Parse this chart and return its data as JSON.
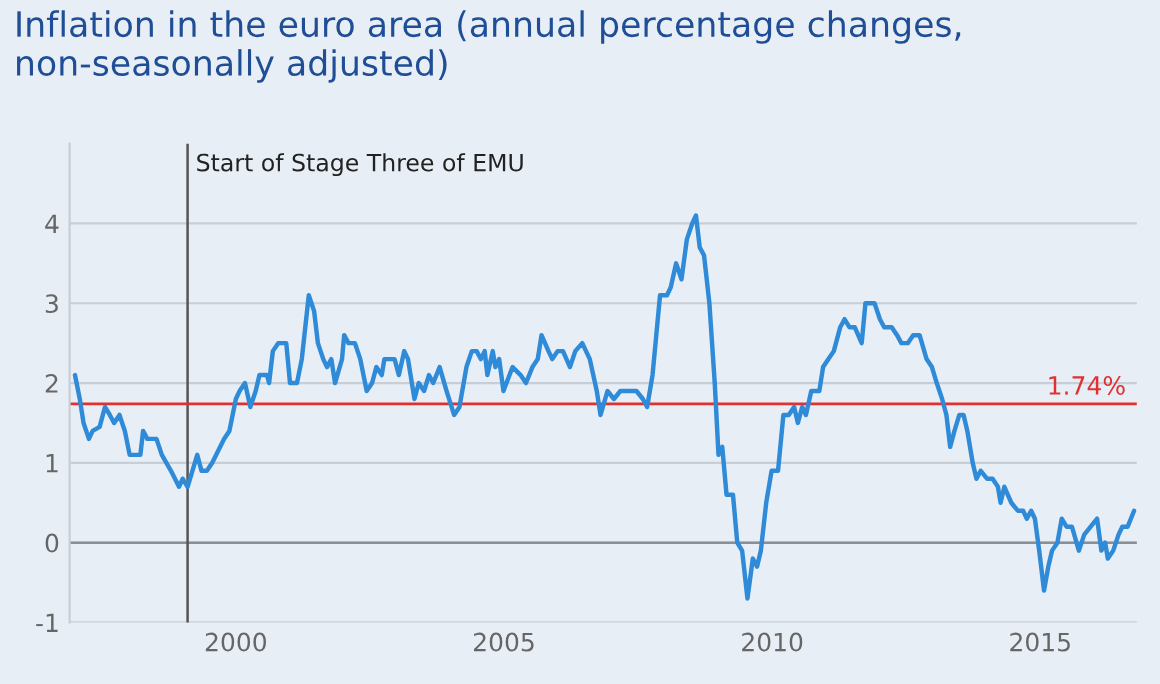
{
  "chart_data": {
    "type": "line",
    "title": "Inflation in the euro area (annual percentage changes, non-seasonally adjusted)",
    "xlim": [
      1996.9,
      2016.8
    ],
    "xticks": [
      2000,
      2005,
      2010,
      2015
    ],
    "ylim": [
      -1,
      5
    ],
    "yticks": [
      -1,
      0,
      1,
      2,
      3,
      4
    ],
    "grid": "y",
    "legend": false,
    "ref_lines": [
      {
        "axis": "x",
        "value": 1999.1,
        "label": "Start of Stage Three of EMU",
        "color": "#555555"
      },
      {
        "axis": "y",
        "value": 1.74,
        "label": "1.74%",
        "color": "#e03030"
      }
    ],
    "series": [
      {
        "color": "#2f8ad8",
        "x": [
          1997.0,
          1997.09,
          1997.16,
          1997.26,
          1997.33,
          1997.46,
          1997.56,
          1997.65,
          1997.73,
          1997.83,
          1997.93,
          1998.02,
          1998.15,
          1998.22,
          1998.27,
          1998.35,
          1998.52,
          1998.62,
          1998.79,
          1998.94,
          1999.01,
          1999.1,
          1999.19,
          1999.28,
          1999.36,
          1999.46,
          1999.56,
          1999.78,
          1999.88,
          2000.0,
          2000.07,
          2000.17,
          2000.27,
          2000.37,
          2000.44,
          2000.58,
          2000.62,
          2000.69,
          2000.79,
          2000.94,
          2001.01,
          2001.14,
          2001.23,
          2001.36,
          2001.46,
          2001.53,
          2001.63,
          2001.7,
          2001.78,
          2001.85,
          2001.98,
          2002.02,
          2002.1,
          2002.22,
          2002.32,
          2002.44,
          2002.54,
          2002.62,
          2002.72,
          2002.77,
          2002.96,
          2003.04,
          2003.14,
          2003.21,
          2003.33,
          2003.41,
          2003.51,
          2003.6,
          2003.68,
          2003.8,
          2003.93,
          2004.07,
          2004.17,
          2004.3,
          2004.4,
          2004.49,
          2004.57,
          2004.64,
          2004.69,
          2004.79,
          2004.84,
          2004.91,
          2004.99,
          2005.16,
          2005.31,
          2005.41,
          2005.53,
          2005.63,
          2005.7,
          2005.83,
          2005.9,
          2006.0,
          2006.1,
          2006.23,
          2006.33,
          2006.46,
          2006.6,
          2006.73,
          2006.8,
          2006.93,
          2007.05,
          2007.17,
          2007.3,
          2007.47,
          2007.59,
          2007.67,
          2007.77,
          2007.84,
          2007.91,
          2008.04,
          2008.11,
          2008.21,
          2008.31,
          2008.41,
          2008.51,
          2008.58,
          2008.65,
          2008.73,
          2008.83,
          2008.93,
          2009.0,
          2009.07,
          2009.15,
          2009.27,
          2009.35,
          2009.44,
          2009.54,
          2009.64,
          2009.72,
          2009.79,
          2009.89,
          2009.99,
          2010.11,
          2010.21,
          2010.31,
          2010.41,
          2010.48,
          2010.56,
          2010.63,
          2010.73,
          2010.88,
          2010.95,
          2011.05,
          2011.15,
          2011.27,
          2011.35,
          2011.44,
          2011.54,
          2011.67,
          2011.74,
          2011.91,
          2012.01,
          2012.09,
          2012.23,
          2012.33,
          2012.41,
          2012.53,
          2012.63,
          2012.75,
          2012.88,
          2012.98,
          2013.07,
          2013.17,
          2013.25,
          2013.32,
          2013.4,
          2013.49,
          2013.57,
          2013.64,
          2013.74,
          2013.81,
          2013.89,
          2014.01,
          2014.11,
          2014.21,
          2014.26,
          2014.33,
          2014.46,
          2014.58,
          2014.68,
          2014.75,
          2014.83,
          2014.9,
          2014.98,
          2015.07,
          2015.15,
          2015.22,
          2015.32,
          2015.4,
          2015.49,
          2015.59,
          2015.72,
          2015.82,
          2015.94,
          2016.06,
          2016.14,
          2016.21,
          2016.26,
          2016.36,
          2016.46,
          2016.53,
          2016.63,
          2016.75
        ],
        "values": [
          2.1,
          1.8,
          1.5,
          1.3,
          1.4,
          1.45,
          1.7,
          1.6,
          1.5,
          1.6,
          1.4,
          1.1,
          1.1,
          1.1,
          1.4,
          1.3,
          1.3,
          1.1,
          0.9,
          0.7,
          0.8,
          0.7,
          0.9,
          1.1,
          0.9,
          0.9,
          1.0,
          1.3,
          1.4,
          1.8,
          1.9,
          2.0,
          1.7,
          1.9,
          2.1,
          2.1,
          2.0,
          2.4,
          2.5,
          2.5,
          2.0,
          2.0,
          2.3,
          3.1,
          2.9,
          2.5,
          2.3,
          2.2,
          2.3,
          2.0,
          2.3,
          2.6,
          2.5,
          2.5,
          2.3,
          1.9,
          2.0,
          2.2,
          2.1,
          2.3,
          2.3,
          2.1,
          2.4,
          2.3,
          1.8,
          2.0,
          1.9,
          2.1,
          2.0,
          2.2,
          1.9,
          1.6,
          1.7,
          2.2,
          2.4,
          2.4,
          2.3,
          2.4,
          2.1,
          2.4,
          2.2,
          2.3,
          1.9,
          2.2,
          2.1,
          2.0,
          2.2,
          2.3,
          2.6,
          2.4,
          2.3,
          2.4,
          2.4,
          2.2,
          2.4,
          2.5,
          2.3,
          1.9,
          1.6,
          1.9,
          1.8,
          1.9,
          1.9,
          1.9,
          1.8,
          1.7,
          2.1,
          2.6,
          3.1,
          3.1,
          3.2,
          3.5,
          3.3,
          3.8,
          4.0,
          4.1,
          3.7,
          3.6,
          3.0,
          2.0,
          1.1,
          1.2,
          0.6,
          0.6,
          0.0,
          -0.1,
          -0.7,
          -0.2,
          -0.3,
          -0.1,
          0.5,
          0.9,
          0.9,
          1.6,
          1.6,
          1.7,
          1.5,
          1.7,
          1.6,
          1.9,
          1.9,
          2.2,
          2.3,
          2.4,
          2.7,
          2.8,
          2.7,
          2.7,
          2.5,
          3.0,
          3.0,
          2.8,
          2.7,
          2.7,
          2.6,
          2.5,
          2.5,
          2.6,
          2.6,
          2.3,
          2.2,
          2.0,
          1.8,
          1.6,
          1.2,
          1.4,
          1.6,
          1.6,
          1.4,
          1.0,
          0.8,
          0.9,
          0.8,
          0.8,
          0.7,
          0.5,
          0.7,
          0.5,
          0.4,
          0.4,
          0.3,
          0.4,
          0.3,
          -0.1,
          -0.6,
          -0.3,
          -0.1,
          0.0,
          0.3,
          0.2,
          0.2,
          -0.1,
          0.1,
          0.2,
          0.3,
          -0.1,
          0.0,
          -0.2,
          -0.1,
          0.1,
          0.2,
          0.2,
          0.4
        ]
      }
    ]
  }
}
